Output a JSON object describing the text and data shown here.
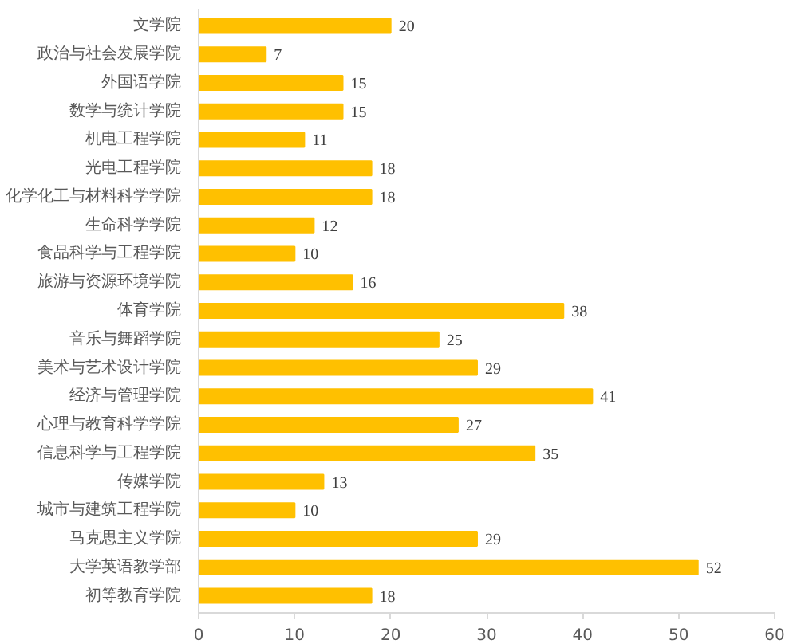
{
  "chart_data": {
    "type": "bar",
    "orientation": "horizontal",
    "categories": [
      "文学院",
      "政治与社会发展学院",
      "外国语学院",
      "数学与统计学院",
      "机电工程学院",
      "光电工程学院",
      "化学化工与材料科学学院",
      "生命科学学院",
      "食品科学与工程学院",
      "旅游与资源环境学院",
      "体育学院",
      "音乐与舞蹈学院",
      "美术与艺术设计学院",
      "经济与管理学院",
      "心理与教育科学学院",
      "信息科学与工程学院",
      "传媒学院",
      "城市与建筑工程学院",
      "马克思主义学院",
      "大学英语教学部",
      "初等教育学院"
    ],
    "values": [
      20,
      7,
      15,
      15,
      11,
      18,
      18,
      12,
      10,
      16,
      38,
      25,
      29,
      41,
      27,
      35,
      13,
      10,
      29,
      52,
      18
    ],
    "color": "#ffc000",
    "xlim": [
      0,
      60
    ],
    "xticks": [
      0,
      10,
      20,
      30,
      40,
      50,
      60
    ],
    "data_labels": true,
    "grid": false
  }
}
